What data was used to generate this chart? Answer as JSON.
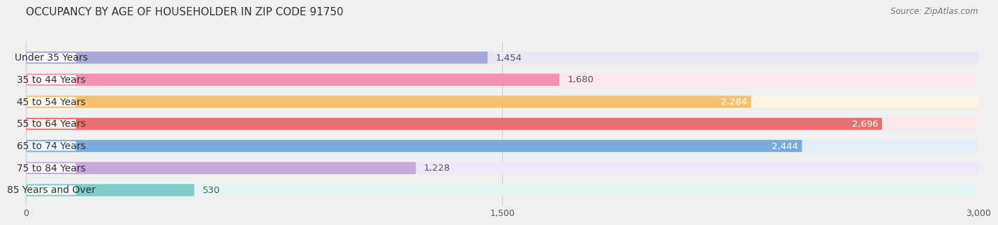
{
  "title": "OCCUPANCY BY AGE OF HOUSEHOLDER IN ZIP CODE 91750",
  "source": "Source: ZipAtlas.com",
  "categories": [
    "Under 35 Years",
    "35 to 44 Years",
    "45 to 54 Years",
    "55 to 64 Years",
    "65 to 74 Years",
    "75 to 84 Years",
    "85 Years and Over"
  ],
  "values": [
    1454,
    1680,
    2284,
    2696,
    2444,
    1228,
    530
  ],
  "bar_colors": [
    "#a8a8d8",
    "#f590b0",
    "#f5c070",
    "#e87070",
    "#7aaad8",
    "#c8a8d8",
    "#80ccc8"
  ],
  "bar_bg_colors": [
    "#e8e8f4",
    "#fce8f0",
    "#fef4e0",
    "#fce8e8",
    "#e4eef8",
    "#f0e8f8",
    "#e0f4f4"
  ],
  "xlim": [
    0,
    3000
  ],
  "xticks": [
    0,
    1500,
    3000
  ],
  "title_fontsize": 11,
  "bar_height": 0.55,
  "label_fontsize": 10,
  "value_fontsize": 9.5,
  "background_color": "#f0f0f0",
  "value_inside_threshold": 2000,
  "label_pill_color": "#ffffff"
}
